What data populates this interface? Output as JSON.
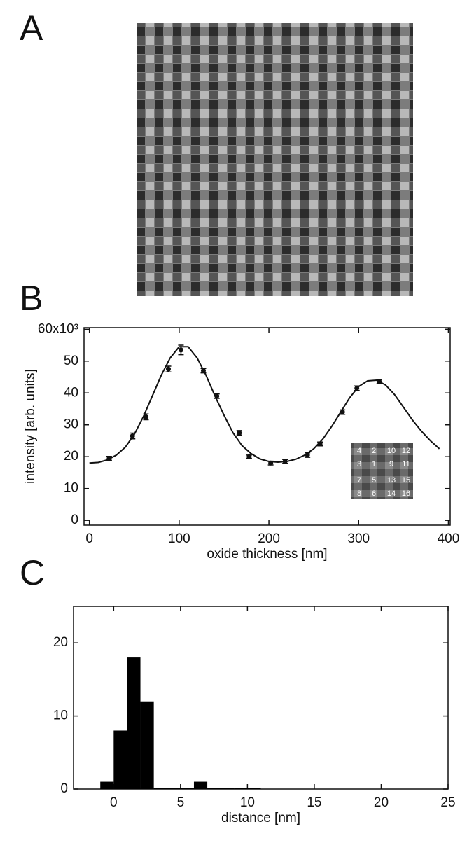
{
  "image_panel": {
    "label": "A"
  },
  "chart_data": [
    {
      "type": "scatter",
      "panel_label": "B",
      "xlabel": "oxide thickness [nm]",
      "ylabel": "intensity [arb. units]",
      "x": [
        22,
        48,
        63,
        88,
        102,
        127,
        142,
        167,
        178,
        202,
        218,
        243,
        257,
        282,
        298,
        323
      ],
      "values": [
        19500,
        26500,
        32500,
        47500,
        53500,
        47000,
        39000,
        27500,
        20000,
        18000,
        18500,
        20500,
        24000,
        34000,
        41500,
        43500
      ],
      "errors": [
        600,
        900,
        900,
        900,
        1500,
        700,
        700,
        700,
        500,
        600,
        600,
        700,
        600,
        700,
        700,
        600
      ],
      "fit": {
        "x": [
          0,
          10,
          20,
          30,
          40,
          50,
          60,
          70,
          80,
          90,
          100,
          110,
          120,
          130,
          140,
          150,
          160,
          170,
          180,
          190,
          200,
          210,
          220,
          230,
          240,
          250,
          260,
          270,
          280,
          290,
          300,
          310,
          320,
          330,
          340,
          350,
          360,
          370,
          380,
          390
        ],
        "values": [
          18000,
          18200,
          19000,
          20500,
          23000,
          27000,
          32500,
          39000,
          45500,
          51000,
          54500,
          54500,
          51000,
          45500,
          39000,
          33000,
          27500,
          23500,
          21000,
          19300,
          18500,
          18300,
          18500,
          19200,
          20500,
          22500,
          25500,
          29500,
          34000,
          38500,
          42000,
          43800,
          44000,
          42500,
          39500,
          35500,
          31500,
          28000,
          25000,
          22500
        ]
      },
      "inset_labels": [
        [
          "4",
          "2",
          "10",
          "12"
        ],
        [
          "3",
          "1",
          "9",
          "11"
        ],
        [
          "7",
          "5",
          "13",
          "15"
        ],
        [
          "8",
          "6",
          "14",
          "16"
        ]
      ],
      "xlim": [
        -6,
        402
      ],
      "ylim": [
        -1500,
        60500
      ],
      "xticks": [
        0,
        100,
        200,
        300,
        400
      ],
      "yticks": [
        {
          "value": 0,
          "label": "0"
        },
        {
          "value": 10000,
          "label": "10"
        },
        {
          "value": 20000,
          "label": "20"
        },
        {
          "value": 30000,
          "label": "30"
        },
        {
          "value": 40000,
          "label": "40"
        },
        {
          "value": 50000,
          "label": "50"
        },
        {
          "value": 60000,
          "label": "60x10³"
        }
      ],
      "color": "#111111"
    },
    {
      "type": "histogram",
      "panel_label": "C",
      "xlabel": "distance [nm]",
      "bins": [
        -1,
        0,
        1,
        2,
        3,
        4,
        5,
        6,
        7,
        8,
        9,
        10,
        11
      ],
      "counts": [
        1,
        8,
        18,
        12,
        0,
        0,
        0,
        1,
        0,
        0,
        0,
        0
      ],
      "xlim": [
        -3,
        25
      ],
      "ylim": [
        0,
        25
      ],
      "xticks": [
        0,
        5,
        10,
        15,
        20,
        25
      ],
      "yticks": [
        0,
        10,
        20
      ],
      "color": "#000000"
    }
  ]
}
